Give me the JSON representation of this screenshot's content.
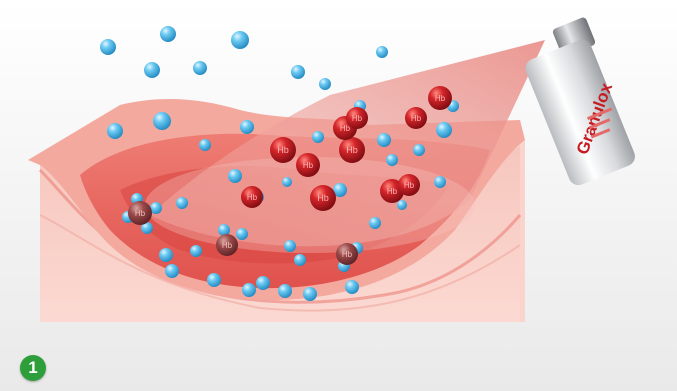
{
  "scene": {
    "bottle_brand": "Granulox",
    "molecule_label": "Hb",
    "step_number": "1"
  },
  "colors": {
    "background": "#f1f1f1",
    "tissue": "#f2a79c",
    "wound": "#e8605a",
    "hemoglobin": "#b8161c",
    "oxygen": "#3fb4e6",
    "badge": "#2e9e3b"
  }
}
